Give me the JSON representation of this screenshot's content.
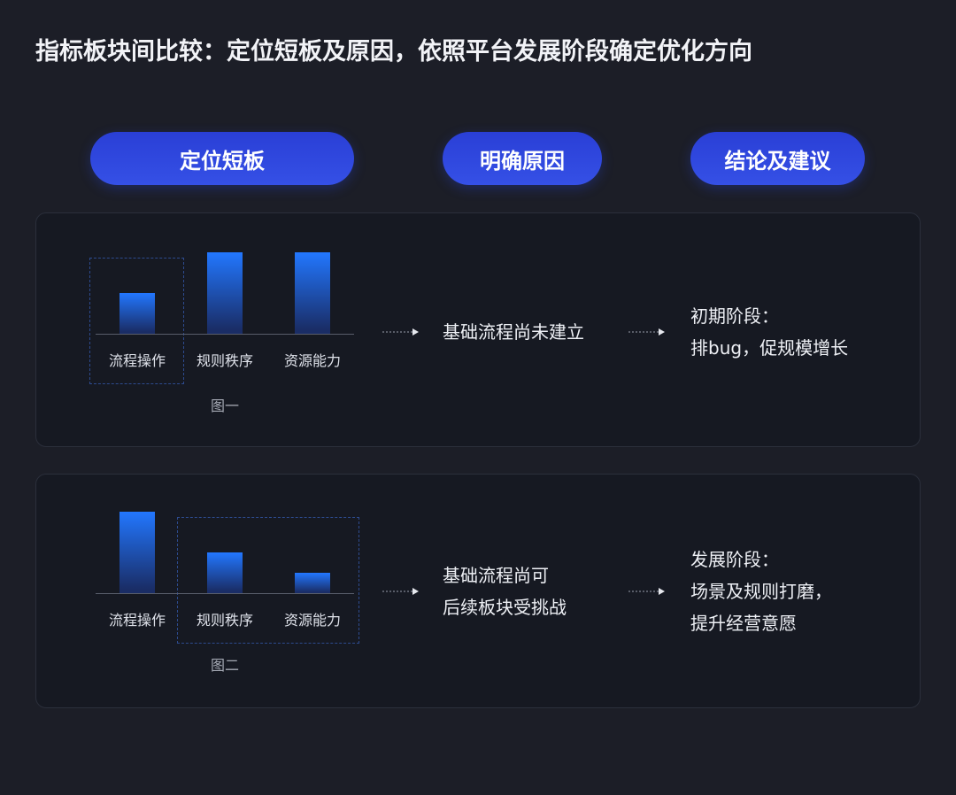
{
  "title": "指标板块间比较：定位短板及原因，依照平台发展阶段确定优化方向",
  "steps": [
    "定位短板",
    "明确原因",
    "结论及建议"
  ],
  "chart_data": [
    {
      "type": "bar",
      "categories": [
        "流程操作",
        "规则秩序",
        "资源能力"
      ],
      "values": [
        2,
        4,
        4
      ],
      "caption": "图一",
      "highlighted": [
        "流程操作"
      ]
    },
    {
      "type": "bar",
      "categories": [
        "流程操作",
        "规则秩序",
        "资源能力"
      ],
      "values": [
        4,
        2,
        1
      ],
      "caption": "图二",
      "highlighted": [
        "规则秩序",
        "资源能力"
      ]
    }
  ],
  "rows": [
    {
      "cause": [
        "基础流程尚未建立"
      ],
      "conclusion": [
        "初期阶段：",
        "排bug，促规模增长"
      ]
    },
    {
      "cause": [
        "基础流程尚可",
        "后续板块受挑战"
      ],
      "conclusion": [
        "发展阶段：",
        "场景及规则打磨，",
        "提升经营意愿"
      ]
    }
  ],
  "colors": {
    "accent": "#2f4ae0",
    "bar_top": "#2277ff",
    "background": "#1c1e27"
  }
}
